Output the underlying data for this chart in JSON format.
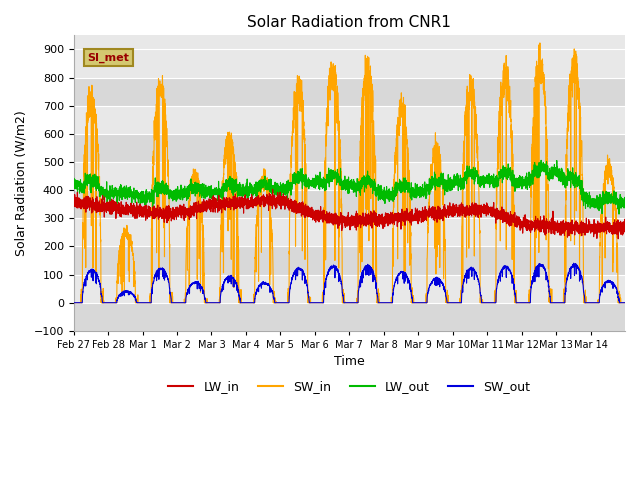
{
  "title": "Solar Radiation from CNR1",
  "xlabel": "Time",
  "ylabel": "Solar Radiation (W/m2)",
  "ylim": [
    -100,
    950
  ],
  "yticks": [
    -100,
    0,
    100,
    200,
    300,
    400,
    500,
    600,
    700,
    800,
    900
  ],
  "x_labels": [
    "Feb 27",
    "Feb 28",
    "Mar 1",
    "Mar 2",
    "Mar 3",
    "Mar 4",
    "Mar 5",
    "Mar 6",
    "Mar 7",
    "Mar 8",
    "Mar 9",
    "Mar 10",
    "Mar 11",
    "Mar 12",
    "Mar 13",
    "Mar 14"
  ],
  "colors": {
    "LW_in": "#cc0000",
    "SW_in": "#ffa500",
    "LW_out": "#00bb00",
    "SW_out": "#0000dd"
  },
  "annotation_text": "SI_met",
  "annotation_color": "#990000",
  "annotation_bg": "#d4c870",
  "annotation_edge": "#a08820",
  "background_color": "#e8e8e8",
  "band_color_light": "#e8e8e8",
  "band_color_dark": "#d8d8d8",
  "grid_color": "#ffffff",
  "n_days": 16,
  "points_per_day": 288,
  "sw_peaks": [
    730,
    250,
    770,
    450,
    580,
    440,
    760,
    810,
    820,
    680,
    540,
    760,
    800,
    850,
    850,
    480
  ],
  "lw_in_base": [
    360,
    340,
    320,
    315,
    350,
    355,
    365,
    310,
    290,
    295,
    310,
    325,
    330,
    280,
    270,
    265
  ],
  "lw_out_base": [
    420,
    390,
    375,
    385,
    395,
    400,
    405,
    425,
    420,
    385,
    395,
    425,
    435,
    425,
    465,
    355
  ]
}
